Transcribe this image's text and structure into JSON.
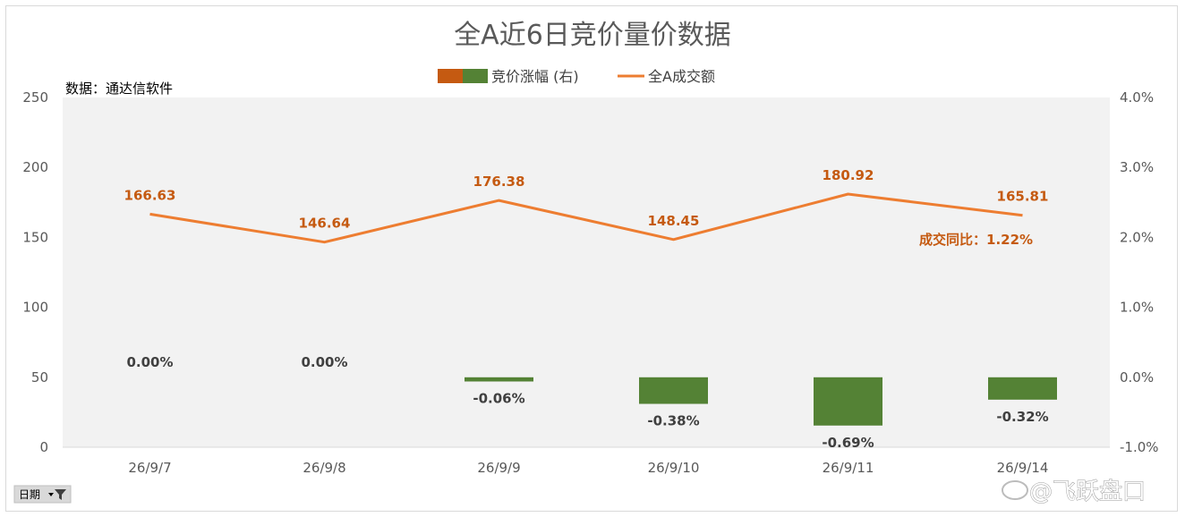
{
  "title": "全A近6日竞价量价数据",
  "source": "数据：通达信软件",
  "legend": {
    "bar_label": "竞价涨幅 (右)",
    "line_label": "全A成交额",
    "bar_colors": [
      "#c55a11",
      "#548235"
    ],
    "line_color": "#ed7d31"
  },
  "note": "成交同比：1.22%",
  "filter_button": {
    "label": "日期"
  },
  "watermark": "@飞跃盘口",
  "chart_data": {
    "type": "bar+line",
    "title": "全A近6日竞价量价数据",
    "categories": [
      "26/9/7",
      "26/9/8",
      "26/9/9",
      "26/9/10",
      "26/9/11",
      "26/9/14"
    ],
    "series": [
      {
        "name": "竞价涨幅 (右)",
        "type": "bar",
        "axis": "right",
        "values": [
          0.0,
          0.0,
          -0.06,
          -0.38,
          -0.69,
          -0.32
        ],
        "labels": [
          "0.00%",
          "0.00%",
          "-0.06%",
          "-0.38%",
          "-0.69%",
          "-0.32%"
        ],
        "color": "#548235"
      },
      {
        "name": "全A成交额",
        "type": "line",
        "axis": "left",
        "values": [
          166.63,
          146.64,
          176.38,
          148.45,
          180.92,
          165.81
        ],
        "labels": [
          "166.63",
          "146.64",
          "176.38",
          "148.45",
          "180.92",
          "165.81"
        ],
        "color": "#ed7d31"
      }
    ],
    "y_left": {
      "ylim": [
        0,
        250
      ],
      "ticks": [
        "0",
        "50",
        "100",
        "150",
        "200",
        "250"
      ]
    },
    "y_right": {
      "ylim": [
        -1.0,
        4.0
      ],
      "ticks": [
        "-1.0%",
        "0.0%",
        "1.0%",
        "2.0%",
        "3.0%",
        "4.0%"
      ]
    },
    "legend_position": "top",
    "grid": false
  }
}
